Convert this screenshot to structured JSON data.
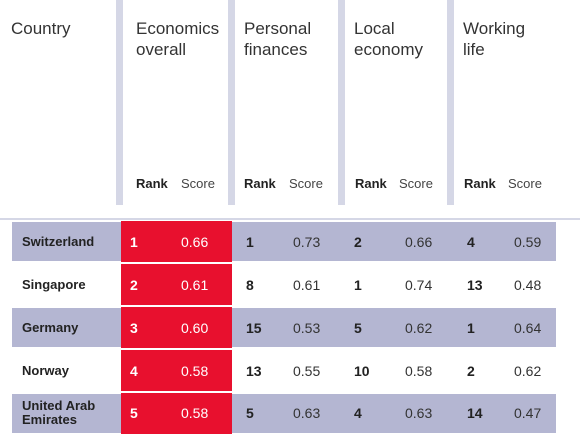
{
  "header": {
    "country": "Country",
    "columns": [
      {
        "title_line1": "Economics",
        "title_line2": "overall"
      },
      {
        "title_line1": "Personal",
        "title_line2": "finances"
      },
      {
        "title_line1": "Local",
        "title_line2": "economy"
      },
      {
        "title_line1": "Working",
        "title_line2": "life"
      }
    ],
    "rank_label": "Rank",
    "score_label": "Score"
  },
  "rows": [
    {
      "country_line1": "Switzerland",
      "country_line2": "",
      "eco_rank": "1",
      "eco_score": "0.66",
      "pf_rank": "1",
      "pf_score": "0.73",
      "le_rank": "2",
      "le_score": "0.66",
      "wl_rank": "4",
      "wl_score": "0.59"
    },
    {
      "country_line1": "Singapore",
      "country_line2": "",
      "eco_rank": "2",
      "eco_score": "0.61",
      "pf_rank": "8",
      "pf_score": "0.61",
      "le_rank": "1",
      "le_score": "0.74",
      "wl_rank": "13",
      "wl_score": "0.48"
    },
    {
      "country_line1": "Germany",
      "country_line2": "",
      "eco_rank": "3",
      "eco_score": "0.60",
      "pf_rank": "15",
      "pf_score": "0.53",
      "le_rank": "5",
      "le_score": "0.62",
      "wl_rank": "1",
      "wl_score": "0.64"
    },
    {
      "country_line1": "Norway",
      "country_line2": "",
      "eco_rank": "4",
      "eco_score": "0.58",
      "pf_rank": "13",
      "pf_score": "0.55",
      "le_rank": "10",
      "le_score": "0.58",
      "wl_rank": "2",
      "wl_score": "0.62"
    },
    {
      "country_line1": "United Arab",
      "country_line2": "Emirates",
      "eco_rank": "5",
      "eco_score": "0.58",
      "pf_rank": "5",
      "pf_score": "0.63",
      "le_rank": "4",
      "le_score": "0.63",
      "wl_rank": "14",
      "wl_score": "0.47"
    }
  ],
  "colors": {
    "highlight": "#e8102e",
    "row_band": "#b4b6d2",
    "separator": "#d5d7e6"
  }
}
